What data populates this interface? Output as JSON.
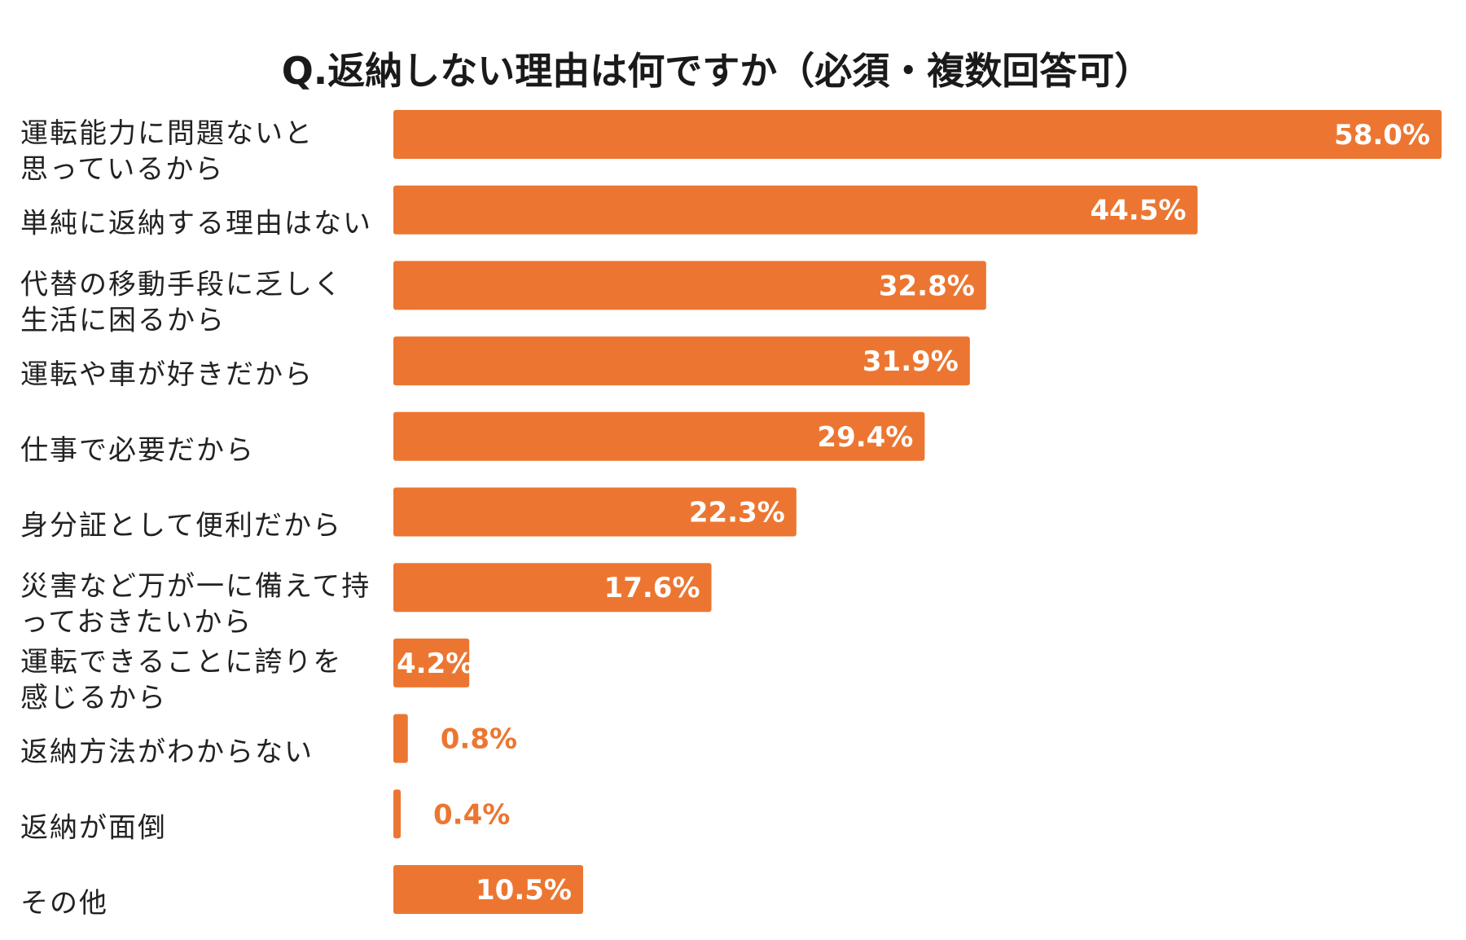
{
  "chart_data": {
    "type": "bar",
    "orientation": "horizontal",
    "title": "Q.返納しない理由は何ですか（必須・複数回答可）",
    "value_suffix": "%",
    "xlim": [
      0,
      58
    ],
    "grid": false,
    "legend": "none",
    "bar_color": "#EC7631",
    "categories": [
      [
        "運転能力に問題ないと",
        "思っているから"
      ],
      [
        "単純に返納する理由はない"
      ],
      [
        "代替の移動手段に乏しく",
        "生活に困るから"
      ],
      [
        "運転や車が好きだから"
      ],
      [
        "仕事で必要だから"
      ],
      [
        "身分証として便利だから"
      ],
      [
        "災害など万が一に備えて持",
        "っておきたいから"
      ],
      [
        "運転できることに誇りを",
        "感じるから"
      ],
      [
        "返納方法がわからない"
      ],
      [
        "返納が面倒"
      ],
      [
        "その他"
      ]
    ],
    "values": [
      58.0,
      44.5,
      32.8,
      31.9,
      29.4,
      22.3,
      17.6,
      4.2,
      0.8,
      0.4,
      10.5
    ],
    "labels": [
      "58.0%",
      "44.5%",
      "32.8%",
      "31.9%",
      "29.4%",
      "22.3%",
      "17.6%",
      "4.2%",
      "0.8%",
      "0.4%",
      "10.5%"
    ]
  }
}
